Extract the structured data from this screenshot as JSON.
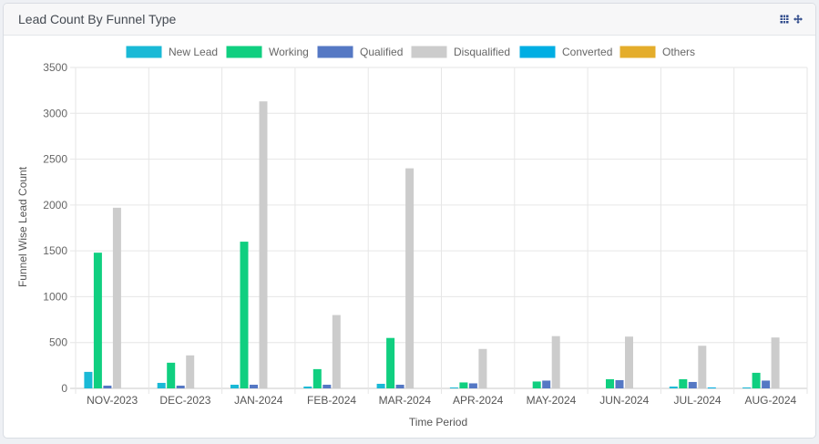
{
  "header": {
    "title": "Lead Count By Funnel Type",
    "icons": [
      "table-icon",
      "move-icon"
    ]
  },
  "colors": {
    "New Lead": "#1ab9d6",
    "Working": "#10cf80",
    "Qualified": "#5578c4",
    "Disqualified": "#cccccc",
    "Converted": "#00aee3",
    "Others": "#e4ad2b"
  },
  "chart_data": {
    "type": "bar",
    "title": "",
    "xlabel": "Time Period",
    "ylabel": "Funnel Wise Lead Count",
    "ylim": [
      0,
      3500
    ],
    "yticks": [
      0,
      500,
      1000,
      1500,
      2000,
      2500,
      3000,
      3500
    ],
    "grid": true,
    "legend": "top",
    "categories": [
      "NOV-2023",
      "DEC-2023",
      "JAN-2024",
      "FEB-2024",
      "MAR-2024",
      "APR-2024",
      "MAY-2024",
      "JUN-2024",
      "JUL-2024",
      "AUG-2024"
    ],
    "series": [
      {
        "name": "New Lead",
        "values": [
          180,
          60,
          40,
          20,
          50,
          10,
          0,
          0,
          20,
          10
        ]
      },
      {
        "name": "Working",
        "values": [
          1480,
          280,
          1600,
          210,
          550,
          65,
          75,
          100,
          100,
          170
        ]
      },
      {
        "name": "Qualified",
        "values": [
          30,
          30,
          40,
          40,
          40,
          55,
          85,
          90,
          70,
          85
        ]
      },
      {
        "name": "Disqualified",
        "values": [
          1970,
          360,
          3130,
          800,
          2400,
          430,
          570,
          565,
          465,
          555
        ]
      },
      {
        "name": "Converted",
        "values": [
          0,
          0,
          0,
          0,
          0,
          0,
          0,
          0,
          10,
          0
        ]
      },
      {
        "name": "Others",
        "values": [
          0,
          0,
          0,
          0,
          0,
          0,
          0,
          0,
          0,
          0
        ]
      }
    ]
  }
}
